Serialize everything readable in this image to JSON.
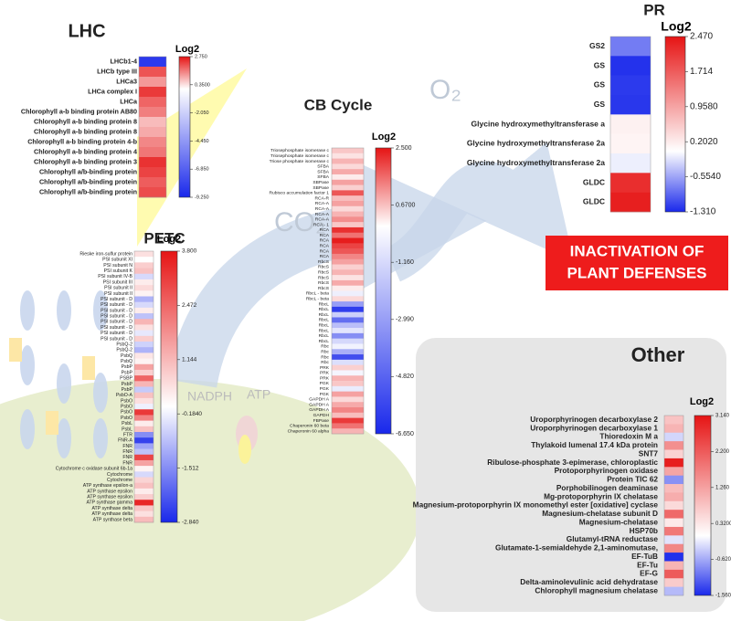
{
  "decor": {
    "o2": "O₂",
    "co2": "CO₂",
    "nadph": "NADPH",
    "atp": "ATP",
    "outcome": [
      "INACTIVATION OF",
      "PLANT DEFENSES"
    ]
  },
  "panels": {
    "lhc": {
      "title": "LHC",
      "legend": "Log2",
      "ticks": [
        {
          "value": 2.75,
          "label": "2.750"
        },
        {
          "value": 0.35,
          "label": "0.3500"
        },
        {
          "value": -2.05,
          "label": "-2.050"
        },
        {
          "value": -4.45,
          "label": "-4.450"
        },
        {
          "value": -6.85,
          "label": "-6.850"
        },
        {
          "value": -9.25,
          "label": "-9.250"
        }
      ],
      "rows": [
        "LHCb1-4",
        "LHCb type III",
        "LHCa3",
        "LHCa complex I",
        "LHCa",
        "Chlorophyll a-b binding protein AB80",
        "Chlorophyll a-b binding protein 8",
        "Chlorophyll a-b binding protein 8",
        "Chlorophyll a-b binding protein 4-b",
        "Chlorophyll a-b binding protein 4",
        "Chlorophyll a-b binding protein 3",
        "Chlorophyll a/b-binding protein",
        "Chlorophyll a/b-binding protein",
        "Chlorophyll a/b-binding protein"
      ],
      "values": [
        -8.5,
        2.0,
        1.2,
        2.3,
        1.8,
        1.5,
        0.8,
        1.0,
        1.4,
        1.6,
        2.4,
        2.2,
        1.9,
        2.1
      ]
    },
    "petc": {
      "title": "PETC",
      "legend": "Log2",
      "ticks": [
        {
          "value": 3.8,
          "label": "3.800"
        },
        {
          "value": 2.472,
          "label": "2.472"
        },
        {
          "value": 1.144,
          "label": "1.144"
        },
        {
          "value": -0.184,
          "label": "-0.1840"
        },
        {
          "value": -1.512,
          "label": "-1.512"
        },
        {
          "value": -2.84,
          "label": "-2.840"
        }
      ],
      "rows": [
        "Rieske iron-sulfur protein",
        "PSI subunit XI",
        "PSI subunit N",
        "PSI subunit K",
        "PSI subunit IV-B",
        "PSI subunit III",
        "PSI subunit II",
        "PSI subunit II",
        "PSI subunit - D",
        "PSI subunit - D",
        "PSI subunit - D",
        "PSI subunit - D",
        "PSI subunit - D",
        "PSI subunit - D",
        "PSI subunit - D",
        "PSI subunit - D",
        "PsbQ-2",
        "PsbQ-2",
        "PsbQ",
        "PsbQ",
        "PsbP",
        "PsbP",
        "PSBP",
        "PsbP",
        "PsbP",
        "PsbO-A",
        "PsbO",
        "PsbO",
        "PsbO",
        "PsbO",
        "PsbL",
        "PsbL",
        "FTR",
        "FNR-A",
        "FNR",
        "FNR",
        "FNR",
        "FNR",
        "Cytochrome c oxidase subunit 6b-1a",
        "Cytochrome",
        "Cytochrome",
        "ATP synthase epsilon-a",
        "ATP synthase epsilon",
        "ATP synthase epsilon",
        "ATP synthase gamma",
        "ATP synthase delta",
        "ATP synthase delta",
        "ATP synthase beta"
      ],
      "values": [
        0.5,
        0,
        0.8,
        1.0,
        -0.5,
        0.3,
        0.6,
        0.2,
        -1,
        -0.5,
        0.3,
        -0.8,
        1.2,
        0.5,
        -0.3,
        0.8,
        -0.6,
        -1.0,
        0.4,
        0.2,
        1.5,
        0.8,
        2.5,
        1.2,
        -0.7,
        1.0,
        0.5,
        -0.2,
        3.2,
        2.0,
        0.3,
        1.0,
        -1.5,
        -2.5,
        -1.2,
        -0.8,
        3.0,
        1.5,
        0.2,
        -0.5,
        0.7,
        1.0,
        0.3,
        0.8,
        3.5,
        0.9,
        0.5,
        1.1
      ]
    },
    "cb": {
      "title": "CB Cycle",
      "legend": "Log2",
      "ticks": [
        {
          "value": 2.5,
          "label": "2.500"
        },
        {
          "value": 0.67,
          "label": "0.6700"
        },
        {
          "value": -1.16,
          "label": "-1.160"
        },
        {
          "value": -2.99,
          "label": "-2.990"
        },
        {
          "value": -4.82,
          "label": "-4.820"
        },
        {
          "value": -6.65,
          "label": "-6.650"
        }
      ],
      "rows": [
        "Triosephosphate isomerase c",
        "Triosephosphate isomerase c",
        "Triose phosphate isomerase c",
        "SFBA",
        "SFBA",
        "SFBA",
        "SBPase",
        "SBPase",
        "Rubisco accumulation factor 1",
        "RCA-R",
        "RCA-A",
        "RCA-A",
        "RCA-A",
        "RCA-A",
        "RCA - 1",
        "RCA",
        "RCA",
        "RCA",
        "RCA",
        "RCA",
        "RCA",
        "RbcS",
        "RbcS",
        "RbcS",
        "RbcS",
        "RbcS",
        "RbcS",
        "RbcL - beta",
        "RbcL - beta",
        "RbcL",
        "RbcL",
        "RbcL",
        "RbcL",
        "RbcL",
        "RbcL",
        "RbcL",
        "RbcL",
        "Rbc",
        "Rbc",
        "Rbc",
        "Rbc",
        "PRK",
        "PRK",
        "PRK",
        "PGK",
        "PGK",
        "PGK",
        "GAPDH A",
        "GAPDH A",
        "GAPDH A",
        "GAPDH",
        "FBPase",
        "Chaperonin 60 beta",
        "Chaperonin 60 alpha"
      ],
      "values": [
        0.6,
        0.3,
        0.8,
        0.4,
        0.9,
        0.2,
        1.0,
        0.5,
        1.8,
        0.7,
        1.0,
        0.4,
        0.8,
        1.2,
        0.6,
        2.2,
        1.5,
        2.4,
        2.0,
        1.8,
        1.3,
        1.0,
        0.5,
        0.8,
        0.3,
        0.9,
        0.2,
        -0.5,
        0.4,
        -3.0,
        -6.0,
        -1.5,
        -4.5,
        -2.0,
        -0.8,
        -3.5,
        -1.2,
        -0.4,
        -2.5,
        -5.5,
        -1.0,
        0.5,
        -0.3,
        0.8,
        0.6,
        -0.6,
        1.0,
        0.4,
        0.9,
        1.3,
        0.7,
        2.1,
        1.5,
        0.8
      ]
    },
    "pr": {
      "title": "PR",
      "legend": "Log2",
      "ticks": [
        {
          "value": 2.47,
          "label": "2.470"
        },
        {
          "value": 1.714,
          "label": "1.714"
        },
        {
          "value": 0.958,
          "label": "0.9580"
        },
        {
          "value": 0.202,
          "label": "0.2020"
        },
        {
          "value": -0.554,
          "label": "-0.5540"
        },
        {
          "value": -1.31,
          "label": "-1.310"
        }
      ],
      "rows": [
        "GS2",
        "GS",
        "GS",
        "GS",
        "Glycine hydroxymethyltransferase a",
        "Glycine hydroxymethyltransferase 2a",
        "Glycine hydroxymethyltransferase 2a",
        "GLDC",
        "GLDC"
      ],
      "values": [
        -0.8,
        -1.25,
        -1.2,
        -1.22,
        0.15,
        0.12,
        -0.1,
        2.2,
        2.35
      ]
    },
    "other": {
      "title": "Other",
      "legend": "Log2",
      "ticks": [
        {
          "value": 3.14,
          "label": "3.140"
        },
        {
          "value": 2.2,
          "label": "2.200"
        },
        {
          "value": 1.26,
          "label": "1.260"
        },
        {
          "value": 0.32,
          "label": "0.3200"
        },
        {
          "value": -0.62,
          "label": "-0.6200"
        },
        {
          "value": -1.56,
          "label": "-1.560"
        }
      ],
      "rows": [
        "Uroporphyrinogen decarboxylase 2",
        "Uroporphyrinogen decarboxylase 1",
        "Thioredoxin M a",
        "Thylakoid lumenal 17.4 kDa protein",
        "SNT7",
        "Ribulose-phosphate 3-epimerase, chloroplastic",
        "Protoporphyrinogen oxidase",
        "Protein TIC 62",
        "Porphobilinogen deaminase",
        "Mg-protoporphyrin IX chelatase",
        "Magnesium-protoporphyrin IX monomethyl ester [oxidative] cyclase",
        "Magnesium-chelatase subunit D",
        "Magnesium-chelatase",
        "HSP70b",
        "Glutamyl-tRNA reductase",
        "Glutamate-1-semialdehyde 2,1-aminomutase,",
        "EF-TuB",
        "EF-Tu",
        "EF-G",
        "Delta-aminolevulinic acid dehydratase",
        "Chlorophyll magnesium chelatase"
      ],
      "values": [
        0.8,
        1.0,
        -0.3,
        1.5,
        0.6,
        3.0,
        1.2,
        -0.8,
        0.9,
        1.1,
        0.5,
        2.0,
        0.3,
        1.8,
        -0.2,
        1.6,
        -1.5,
        1.0,
        2.2,
        0.7,
        -0.5
      ]
    }
  }
}
